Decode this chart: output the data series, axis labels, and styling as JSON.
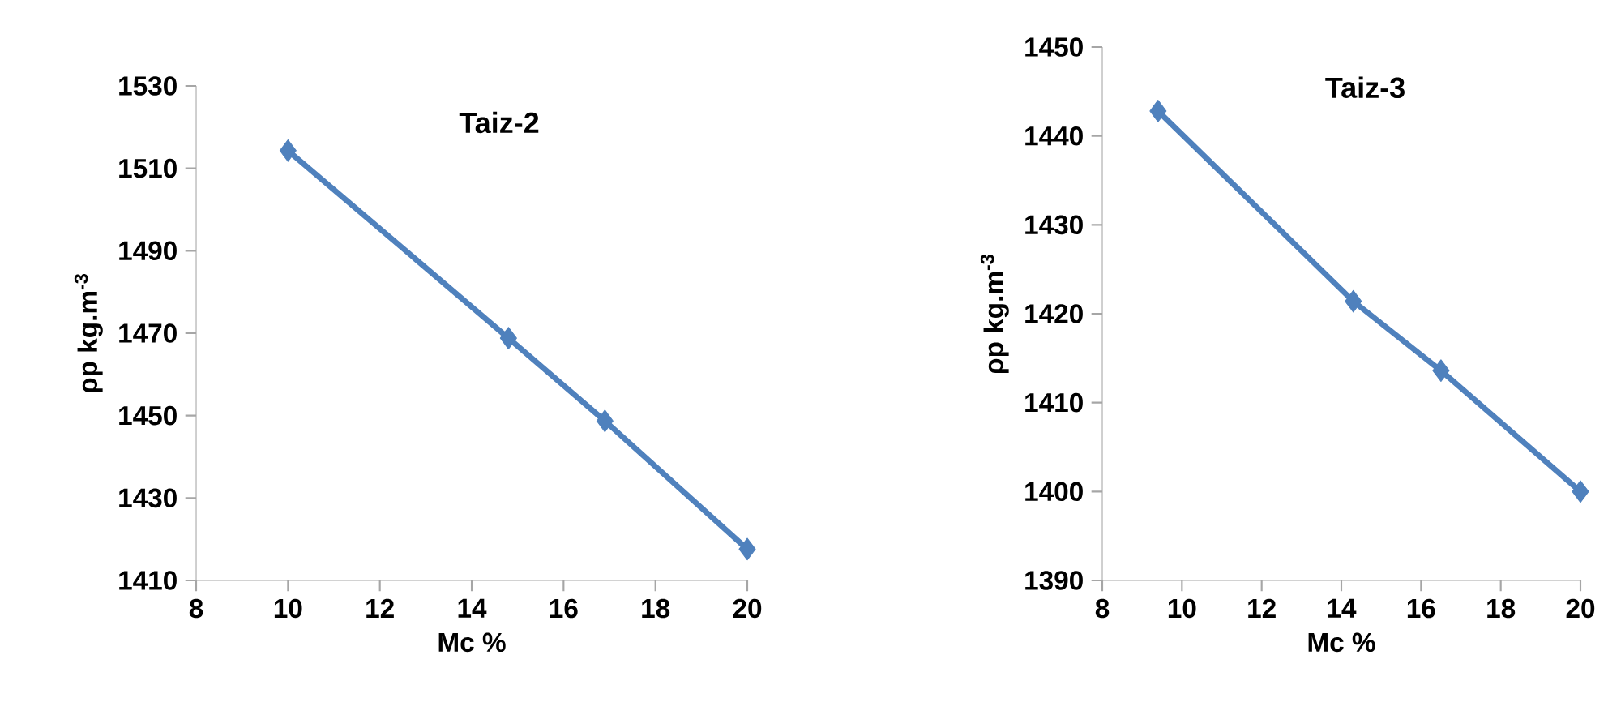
{
  "chart_data": [
    {
      "type": "line",
      "title": "Taiz-2",
      "xlabel": "Mc  %",
      "ylabel": "ρp  kg.m$^{-3}$",
      "x": [
        10.0,
        14.8,
        16.9,
        20.0
      ],
      "series": [
        {
          "color": "#4f81bd",
          "values": [
            1514.3,
            1468.8,
            1448.7,
            1417.6
          ]
        }
      ],
      "xlim": [
        8,
        20
      ],
      "xticks": [
        8,
        10,
        12,
        14,
        16,
        18,
        20
      ],
      "ylim": [
        1410,
        1530
      ],
      "yticks": [
        1410,
        1430,
        1450,
        1470,
        1490,
        1510,
        1530
      ],
      "marker": "diamond",
      "line_style": "solid"
    },
    {
      "type": "line",
      "title": "Taiz-3",
      "xlabel": "Mc %",
      "ylabel": "ρp  kg.m$^{-3}$",
      "x": [
        9.4,
        14.3,
        16.5,
        20.0
      ],
      "series": [
        {
          "color": "#4f81bd",
          "values": [
            1442.8,
            1421.4,
            1413.6,
            1400.0
          ]
        }
      ],
      "xlim": [
        8,
        20
      ],
      "xticks": [
        8,
        10,
        12,
        14,
        16,
        18,
        20
      ],
      "ylim": [
        1390,
        1450
      ],
      "yticks": [
        1390,
        1400,
        1410,
        1420,
        1430,
        1440,
        1450
      ],
      "marker": "diamond",
      "line_style": "solid"
    }
  ]
}
